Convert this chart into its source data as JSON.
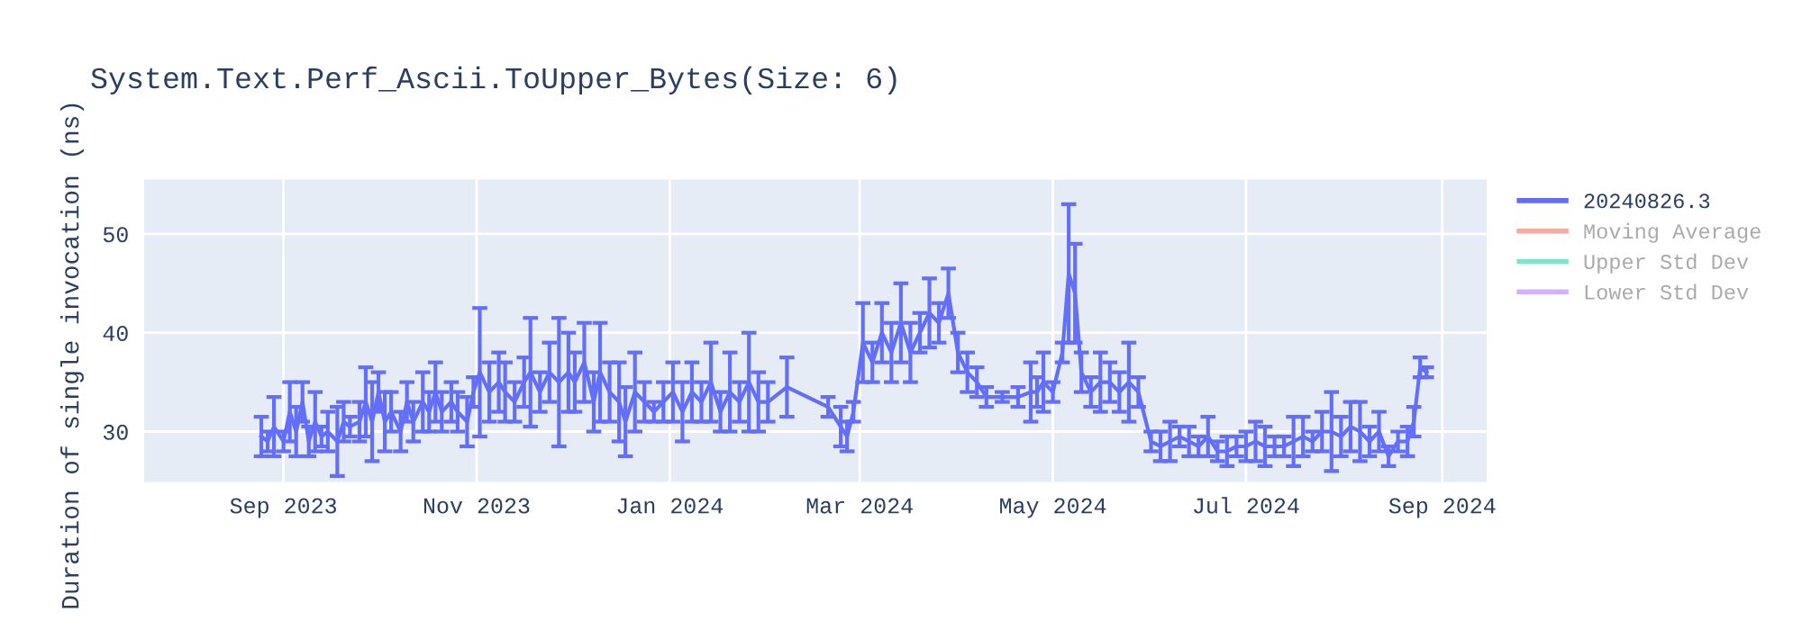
{
  "chart_data": {
    "type": "line",
    "title": "System.Text.Perf_Ascii.ToUpper_Bytes(Size: 6)",
    "ylabel": "Duration of single invocation (ns)",
    "xlim": [
      "2023-07-19",
      "2024-09-15"
    ],
    "xticks": [
      {
        "value": "2023-09-01",
        "label": "Sep 2023"
      },
      {
        "value": "2023-11-01",
        "label": "Nov 2023"
      },
      {
        "value": "2024-01-01",
        "label": "Jan 2024"
      },
      {
        "value": "2024-03-01",
        "label": "Mar 2024"
      },
      {
        "value": "2024-05-01",
        "label": "May 2024"
      },
      {
        "value": "2024-07-01",
        "label": "Jul 2024"
      },
      {
        "value": "2024-09-01",
        "label": "Sep 2024"
      }
    ],
    "ylim": [
      24.9,
      55.5
    ],
    "yticks": [
      30,
      40,
      50
    ],
    "grid": true,
    "legend": "right",
    "marker": "none",
    "line_style": "solid",
    "series": [
      {
        "name": "20240826.3",
        "color": "#636efa",
        "x": [
          "2023-08-25",
          "2023-08-27",
          "2023-08-29",
          "2023-09-01",
          "2023-09-03",
          "2023-09-05",
          "2023-09-07",
          "2023-09-09",
          "2023-09-11",
          "2023-09-13",
          "2023-09-15",
          "2023-09-18",
          "2023-09-20",
          "2023-09-22",
          "2023-09-25",
          "2023-09-27",
          "2023-09-29",
          "2023-10-01",
          "2023-10-03",
          "2023-10-05",
          "2023-10-08",
          "2023-10-10",
          "2023-10-12",
          "2023-10-15",
          "2023-10-17",
          "2023-10-19",
          "2023-10-21",
          "2023-10-24",
          "2023-10-26",
          "2023-10-29",
          "2023-10-31",
          "2023-11-02",
          "2023-11-05",
          "2023-11-08",
          "2023-11-10",
          "2023-11-13",
          "2023-11-16",
          "2023-11-18",
          "2023-11-21",
          "2023-11-24",
          "2023-11-27",
          "2023-11-30",
          "2023-12-02",
          "2023-12-05",
          "2023-12-08",
          "2023-12-10",
          "2023-12-13",
          "2023-12-16",
          "2023-12-18",
          "2023-12-21",
          "2023-12-24",
          "2023-12-27",
          "2023-12-30",
          "2024-01-02",
          "2024-01-05",
          "2024-01-08",
          "2024-01-11",
          "2024-01-14",
          "2024-01-17",
          "2024-01-20",
          "2024-01-23",
          "2024-01-26",
          "2024-01-29",
          "2024-02-01",
          "2024-02-07",
          "2024-02-20",
          "2024-02-24",
          "2024-02-26",
          "2024-02-28",
          "2024-03-02",
          "2024-03-05",
          "2024-03-08",
          "2024-03-11",
          "2024-03-14",
          "2024-03-17",
          "2024-03-20",
          "2024-03-23",
          "2024-03-26",
          "2024-03-29",
          "2024-04-01",
          "2024-04-04",
          "2024-04-07",
          "2024-04-10",
          "2024-04-15",
          "2024-04-20",
          "2024-04-24",
          "2024-04-26",
          "2024-04-28",
          "2024-05-01",
          "2024-05-04",
          "2024-05-06",
          "2024-05-08",
          "2024-05-10",
          "2024-05-13",
          "2024-05-16",
          "2024-05-19",
          "2024-05-22",
          "2024-05-25",
          "2024-05-28",
          "2024-06-01",
          "2024-06-04",
          "2024-06-07",
          "2024-06-10",
          "2024-06-13",
          "2024-06-16",
          "2024-06-19",
          "2024-06-22",
          "2024-06-25",
          "2024-06-28",
          "2024-07-01",
          "2024-07-04",
          "2024-07-07",
          "2024-07-10",
          "2024-07-13",
          "2024-07-16",
          "2024-07-19",
          "2024-07-22",
          "2024-07-25",
          "2024-07-28",
          "2024-07-31",
          "2024-08-03",
          "2024-08-06",
          "2024-08-09",
          "2024-08-12",
          "2024-08-15",
          "2024-08-18",
          "2024-08-21",
          "2024-08-23",
          "2024-08-25",
          "2024-08-27"
        ],
        "values": [
          29.5,
          29,
          30.5,
          29,
          32,
          30,
          33,
          29,
          31,
          29.5,
          30,
          29,
          31,
          30.5,
          31,
          33,
          31,
          34,
          31,
          32,
          30,
          33,
          31,
          33,
          32,
          34,
          32,
          33,
          32,
          31,
          34,
          36,
          34,
          35,
          34,
          33,
          35,
          36,
          34,
          36,
          35,
          36,
          35,
          37,
          33,
          36,
          34,
          33,
          31,
          34,
          33,
          32,
          33,
          34,
          32,
          34,
          33,
          35,
          32,
          34,
          33,
          35,
          33,
          33,
          34.5,
          32.5,
          30.5,
          29.5,
          32,
          39,
          37,
          40,
          38,
          41,
          38,
          40,
          42,
          41,
          44,
          38,
          36,
          35,
          33.5,
          33.5,
          33.5,
          34,
          34,
          35,
          34,
          38,
          46,
          44,
          36,
          34,
          35,
          35,
          34,
          35,
          34,
          29,
          28.5,
          29,
          29.5,
          29,
          28.5,
          29.5,
          28,
          28,
          28.5,
          28.5,
          29,
          28.5,
          28.5,
          28.5,
          29,
          29.5,
          29,
          30,
          30,
          29.5,
          30.5,
          30,
          29,
          30,
          27.5,
          29,
          29,
          31,
          36.5,
          36
        ],
        "errors": [
          2,
          1,
          3,
          1,
          3,
          2.5,
          2,
          1.5,
          3,
          1,
          2,
          3.5,
          2,
          1,
          2,
          3.5,
          4,
          2,
          3,
          2,
          2,
          2,
          2,
          3,
          2,
          3,
          2,
          2,
          2,
          2.5,
          1.5,
          6.5,
          3,
          3,
          3,
          2,
          2.5,
          5.5,
          2,
          3,
          6.5,
          4,
          3,
          4,
          3,
          5,
          3,
          4,
          3.5,
          4,
          2,
          1,
          2,
          3,
          3,
          3,
          2,
          4,
          2,
          4,
          2,
          5,
          3,
          2,
          3,
          1,
          2,
          1.5,
          1,
          4,
          2,
          3,
          3,
          4,
          3,
          2,
          3.5,
          2,
          2.5,
          2,
          2,
          1.5,
          1,
          0.5,
          1,
          3,
          1.5,
          3,
          1,
          1,
          7,
          5,
          2,
          1.5,
          3,
          2,
          2,
          4,
          1.5,
          1,
          1.5,
          2,
          1,
          1.5,
          1,
          2,
          1,
          1.5,
          1,
          1.5,
          2,
          2,
          1,
          1,
          2.5,
          2,
          1,
          2,
          4,
          2,
          2.5,
          3,
          1.5,
          2,
          1,
          1,
          1.5,
          1.5,
          1,
          0.5
        ]
      },
      {
        "name": "Moving Average",
        "color": "#ef553b"
      },
      {
        "name": "Upper Std Dev",
        "color": "#00cc96"
      },
      {
        "name": "Lower Std Dev",
        "color": "#ab63fa"
      }
    ]
  }
}
